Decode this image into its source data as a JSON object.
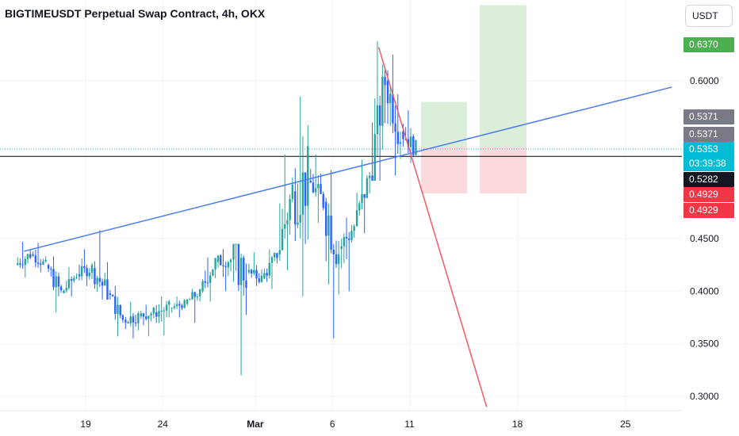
{
  "header": {
    "title": "BIGTIMEUSDT Perpetual Swap Contract, 4h, OKX",
    "currency": "USDT"
  },
  "colors": {
    "up": "#26a69a",
    "down": "#2962ff",
    "trendline": "#4a7cf0",
    "downline": "#f05a67",
    "profit_zone": "#dbeed9",
    "loss_zone": "#fbd9dc",
    "price_line": "#000000",
    "current_line": "#2bb5c8"
  },
  "price_tags": [
    {
      "value": "0.6370",
      "color": "#4caf50"
    },
    {
      "value": "0.5371",
      "color": "#787b86"
    },
    {
      "value": "0.5371",
      "color": "#787b86"
    },
    {
      "value": "0.5353",
      "color": "#00bcd4"
    },
    {
      "value": "03:39:38",
      "color": "#00bcd4"
    },
    {
      "value": "0.5282",
      "color": "#131722"
    },
    {
      "value": "0.4929",
      "color": "#f23645"
    },
    {
      "value": "0.4929",
      "color": "#f23645"
    }
  ],
  "chart_data": {
    "type": "candlestick",
    "title": "BIGTIMEUSDT Perpetual Swap Contract, 4h, OKX",
    "y_ticks": [
      "0.6000",
      "0.4500",
      "0.4000",
      "0.3500",
      "0.3000"
    ],
    "y_range": [
      0.28,
      0.66
    ],
    "x_ticks": [
      "19",
      "24",
      "Mar",
      "6",
      "11",
      "18",
      "25"
    ],
    "current_price": 0.5353,
    "countdown": "03:39:38",
    "horizontal_level": 0.5282,
    "trade_setup_1": {
      "entry": 0.5371,
      "target": 0.58,
      "stop": 0.4929
    },
    "trade_setup_2": {
      "entry": 0.5371,
      "target": 0.637,
      "stop": 0.4929
    },
    "trendline_start": {
      "date": "Feb 15",
      "price": 0.438
    },
    "trendline_end": {
      "date": "Mar 28",
      "price": 0.594
    },
    "downline_start": {
      "date": "Mar 9",
      "price": 0.632
    },
    "downline_end": {
      "date": "Mar 16",
      "price": 0.29
    },
    "series": [
      {
        "x": "Feb 15",
        "o": 0.425,
        "h": 0.447,
        "l": 0.413,
        "c": 0.435
      },
      {
        "x": "Feb 16",
        "o": 0.435,
        "h": 0.446,
        "l": 0.418,
        "c": 0.425
      },
      {
        "x": "Feb 17",
        "o": 0.425,
        "h": 0.433,
        "l": 0.38,
        "c": 0.398
      },
      {
        "x": "Feb 18",
        "o": 0.398,
        "h": 0.423,
        "l": 0.395,
        "c": 0.416
      },
      {
        "x": "Feb 19",
        "o": 0.416,
        "h": 0.44,
        "l": 0.405,
        "c": 0.422
      },
      {
        "x": "Feb 20",
        "o": 0.422,
        "h": 0.458,
        "l": 0.392,
        "c": 0.398
      },
      {
        "x": "Feb 21",
        "o": 0.398,
        "h": 0.405,
        "l": 0.357,
        "c": 0.373
      },
      {
        "x": "Feb 22",
        "o": 0.373,
        "h": 0.39,
        "l": 0.355,
        "c": 0.376
      },
      {
        "x": "Feb 23",
        "o": 0.376,
        "h": 0.387,
        "l": 0.357,
        "c": 0.38
      },
      {
        "x": "Feb 24",
        "o": 0.38,
        "h": 0.395,
        "l": 0.358,
        "c": 0.384
      },
      {
        "x": "Feb 25",
        "o": 0.384,
        "h": 0.395,
        "l": 0.375,
        "c": 0.388
      },
      {
        "x": "Feb 26",
        "o": 0.388,
        "h": 0.402,
        "l": 0.37,
        "c": 0.4
      },
      {
        "x": "Feb 27",
        "o": 0.4,
        "h": 0.432,
        "l": 0.39,
        "c": 0.428
      },
      {
        "x": "Feb 28",
        "o": 0.428,
        "h": 0.44,
        "l": 0.4,
        "c": 0.43
      },
      {
        "x": "Feb 29",
        "o": 0.43,
        "h": 0.445,
        "l": 0.32,
        "c": 0.418
      },
      {
        "x": "Mar 1",
        "o": 0.418,
        "h": 0.437,
        "l": 0.405,
        "c": 0.412
      },
      {
        "x": "Mar 2",
        "o": 0.412,
        "h": 0.44,
        "l": 0.402,
        "c": 0.435
      },
      {
        "x": "Mar 3",
        "o": 0.435,
        "h": 0.53,
        "l": 0.42,
        "c": 0.495
      },
      {
        "x": "Mar 4",
        "o": 0.495,
        "h": 0.585,
        "l": 0.395,
        "c": 0.505
      },
      {
        "x": "Mar 5",
        "o": 0.505,
        "h": 0.53,
        "l": 0.465,
        "c": 0.485
      },
      {
        "x": "Mar 6",
        "o": 0.485,
        "h": 0.515,
        "l": 0.355,
        "c": 0.44
      },
      {
        "x": "Mar 7",
        "o": 0.44,
        "h": 0.47,
        "l": 0.4,
        "c": 0.462
      },
      {
        "x": "Mar 8",
        "o": 0.462,
        "h": 0.525,
        "l": 0.455,
        "c": 0.51
      },
      {
        "x": "Mar 9",
        "o": 0.51,
        "h": 0.638,
        "l": 0.505,
        "c": 0.6
      },
      {
        "x": "Mar 10",
        "o": 0.6,
        "h": 0.625,
        "l": 0.51,
        "c": 0.552
      },
      {
        "x": "Mar 11",
        "o": 0.552,
        "h": 0.572,
        "l": 0.522,
        "c": 0.535
      }
    ]
  }
}
